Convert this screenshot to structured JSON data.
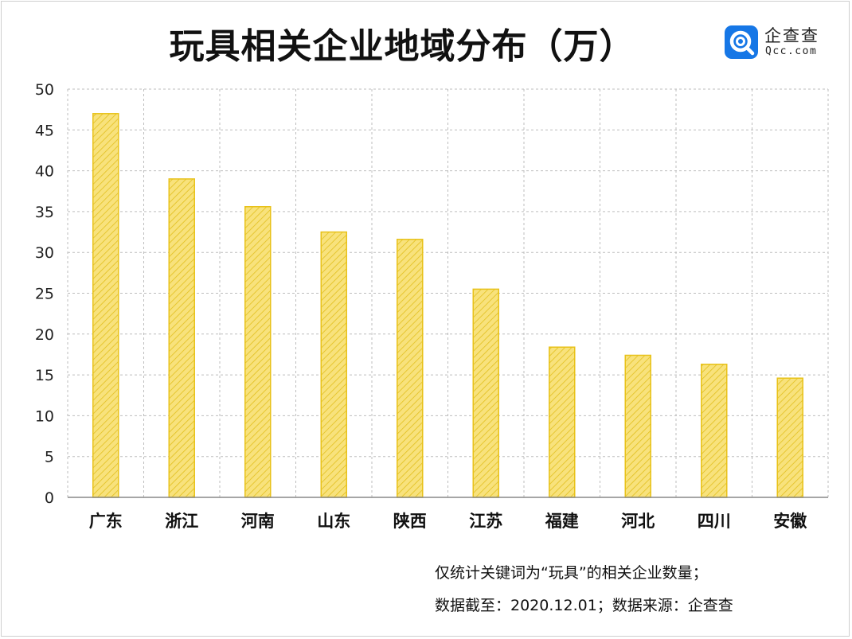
{
  "header": {
    "title": "玩具相关企业地域分布（万）",
    "logo_cn": "企查查",
    "logo_en": "Qcc.com"
  },
  "notes": {
    "line1": "仅统计关键词为“玩具”的相关企业数量；",
    "line2": "数据截至：2020.12.01；数据来源：企查查"
  },
  "colors": {
    "bar_fill": "#f8e27c",
    "bar_stroke": "#e8c21a",
    "hatch": "#e2bf1e",
    "grid": "#bdbdbd",
    "brand": "#1677e6"
  },
  "chart_data": {
    "type": "bar",
    "title": "玩具相关企业地域分布（万）",
    "xlabel": "",
    "ylabel": "",
    "categories": [
      "广东",
      "浙江",
      "河南",
      "山东",
      "陕西",
      "江苏",
      "福建",
      "河北",
      "四川",
      "安徽"
    ],
    "values": [
      47,
      39,
      35.6,
      32.5,
      31.6,
      25.5,
      18.4,
      17.4,
      16.3,
      14.6
    ],
    "ylim": [
      0,
      50
    ],
    "yticks": [
      "0",
      "5",
      "10",
      "15",
      "20",
      "25",
      "30",
      "35",
      "40",
      "45",
      "50"
    ],
    "grid": true,
    "legend": "none"
  }
}
